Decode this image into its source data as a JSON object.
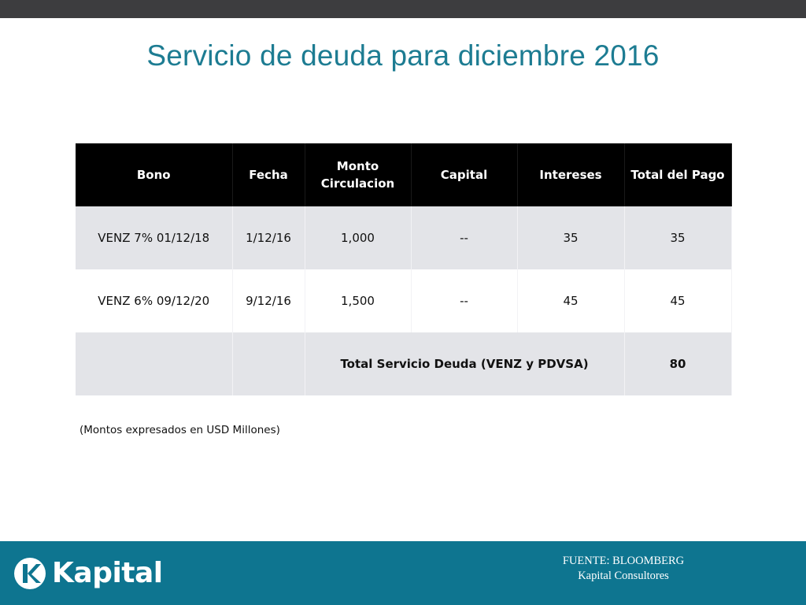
{
  "slide": {
    "title": "Servicio de deuda para diciembre 2016"
  },
  "table": {
    "headers": [
      "Bono",
      "Fecha",
      "Monto Circulacion",
      "Capital",
      "Intereses",
      "Total del Pago"
    ],
    "header_monto_line1": "Monto",
    "header_monto_line2": "Circulacion",
    "rows": [
      {
        "bono": "VENZ 7% 01/12/18",
        "fecha": "1/12/16",
        "monto": "1,000",
        "capital": "--",
        "intereses": "35",
        "total": "35"
      },
      {
        "bono": "VENZ 6% 09/12/20",
        "fecha": "9/12/16",
        "monto": "1,500",
        "capital": "--",
        "intereses": "45",
        "total": "45"
      }
    ],
    "total_row": {
      "label": "Total Servicio Deuda (VENZ y PDVSA)",
      "value": "80"
    }
  },
  "note": "(Montos expresados en USD Millones)",
  "footer": {
    "logo_text": "Kapital",
    "source_line1": "FUENTE: BLOOMBERG",
    "source_line2": "Kapital Consultores",
    "colors": {
      "footer_bg": "#0e7590",
      "title": "#1d7c92",
      "topbar": "#3d3d3f"
    }
  }
}
